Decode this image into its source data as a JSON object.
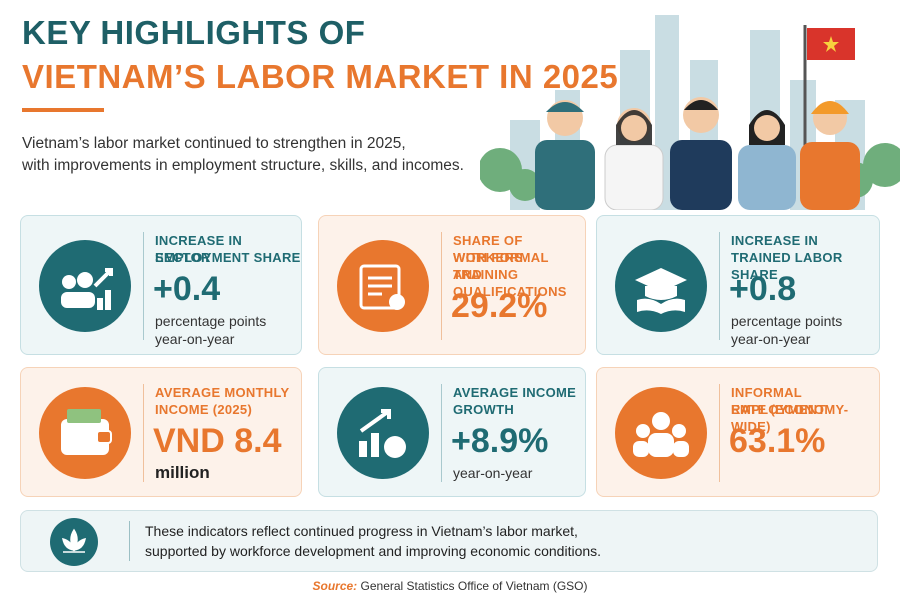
{
  "header": {
    "title_line1": "KEY HIGHLIGHTS OF",
    "title_line2": "VIETNAM’S LABOR MARKET IN 2025",
    "intro_lines": [
      "Vietnam’s labor market continued to strengthen in 2025,",
      "with improvements in employment structure, skills, and incomes."
    ]
  },
  "cards": [
    {
      "label_lines": [
        "INCREASE IN SECTOR",
        "EMPLOYMENT SHARE"
      ],
      "value": "+0.4",
      "note_lines": [
        "percentage points",
        "year-on-year"
      ]
    },
    {
      "label_lines": [
        "SHARE OF WORKERS",
        "WITH FORMAL TRAINING",
        "AND QUALIFICATIONS"
      ],
      "value": "29.2%",
      "note_lines": []
    },
    {
      "label_lines": [
        "INCREASE IN",
        "TRAINED LABOR SHARE"
      ],
      "value": "+0.8",
      "note_lines": [
        "percentage points",
        "year-on-year"
      ]
    },
    {
      "label_lines": [
        "AVERAGE MONTHLY",
        "INCOME (2025)"
      ],
      "value": "VND 8.4",
      "note_lines": [
        "million"
      ]
    },
    {
      "label_lines": [
        "AVERAGE INCOME",
        "GROWTH"
      ],
      "value": "+8.9%",
      "note_lines": [
        "year-on-year"
      ]
    },
    {
      "label_lines": [
        "INFORMAL EMPLOYMENT",
        "RATE (ECONOMY-WIDE)"
      ],
      "value": "63.1%",
      "note_lines": []
    }
  ],
  "footer": {
    "text_lines": [
      "These indicators reflect continued progress in Vietnam’s labor market,",
      "supported by workforce development and improving economic conditions."
    ]
  },
  "source": {
    "label": "Source:",
    "text": "General Statistics Office of Vietnam (GSO)"
  }
}
